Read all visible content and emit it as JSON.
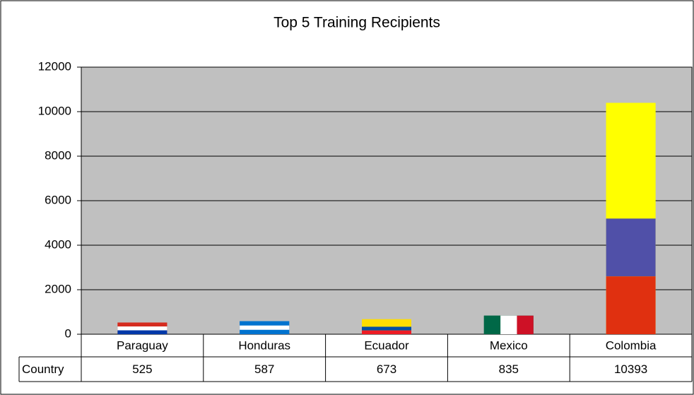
{
  "chart_data": {
    "type": "bar",
    "title": "Top 5 Training Recipients",
    "categories": [
      "Paraguay",
      "Honduras",
      "Ecuador",
      "Mexico",
      "Colombia"
    ],
    "values": [
      525,
      587,
      673,
      835,
      10393
    ],
    "table_row_label": "Country",
    "bar_colors": [
      [
        "#d52b1e",
        "#ffffff",
        "#0038a8"
      ],
      [
        "#0073cf",
        "#ffffff",
        "#0073cf"
      ],
      [
        "#ffdd00",
        "#ffdd00",
        "#034ea2",
        "#ed1c24"
      ],
      [
        "#006847",
        "#ffffff",
        "#ce1126"
      ],
      [
        "#ffff00",
        "#ffff00",
        "#5050a8",
        "#e03010"
      ]
    ],
    "flag_stripes": [
      "horizontal",
      "horizontal",
      "horizontal",
      "vertical",
      "horizontal"
    ],
    "plot_background": "#c0c0c0",
    "ylim": [
      0,
      12000
    ],
    "yticks": [
      0,
      2000,
      4000,
      6000,
      8000,
      10000,
      12000
    ],
    "grid": true
  }
}
